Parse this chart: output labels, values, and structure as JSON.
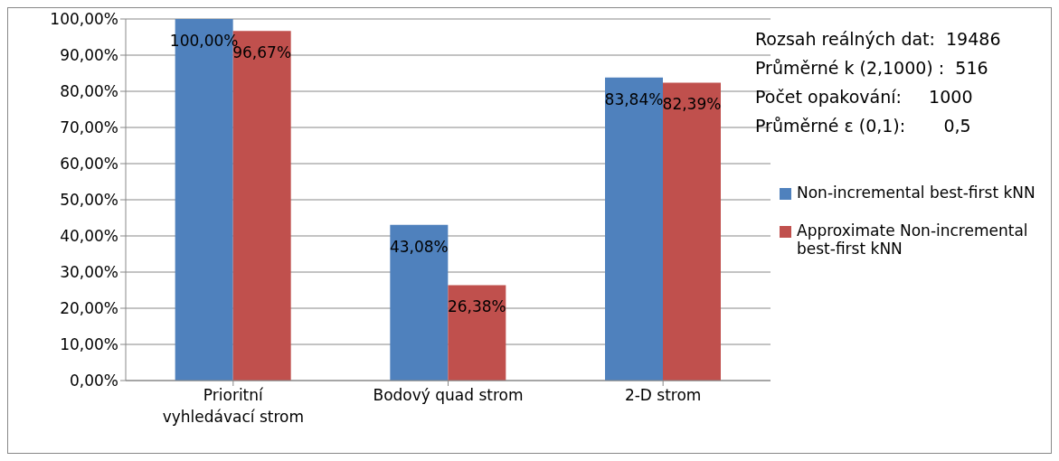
{
  "chart_data": {
    "type": "bar",
    "categories": [
      "Prioritní vyhledávací strom",
      "Bodový quad strom",
      "2-D strom"
    ],
    "series": [
      {
        "name": "Non-incremental best-first kNN",
        "color": "#4f81bd",
        "values": [
          100,
          43.08,
          83.84
        ],
        "value_labels": [
          "100,00%",
          "43,08%",
          "83,84%"
        ]
      },
      {
        "name": "Approximate Non-incremental best-first kNN",
        "color": "#c0504d",
        "values": [
          96.67,
          26.38,
          82.39
        ],
        "value_labels": [
          "96,67%",
          "26,38%",
          "82,39%"
        ]
      }
    ],
    "ylim": [
      0,
      100
    ],
    "yticks": [
      {
        "value": 0,
        "label": "0,00%"
      },
      {
        "value": 10,
        "label": "10,00%"
      },
      {
        "value": 20,
        "label": "20,00%"
      },
      {
        "value": 30,
        "label": "30,00%"
      },
      {
        "value": 40,
        "label": "40,00%"
      },
      {
        "value": 50,
        "label": "50,00%"
      },
      {
        "value": 60,
        "label": "60,00%"
      },
      {
        "value": 70,
        "label": "70,00%"
      },
      {
        "value": 80,
        "label": "80,00%"
      },
      {
        "value": 90,
        "label": "90,00%"
      },
      {
        "value": 100,
        "label": "100,00%"
      }
    ],
    "grid": "y",
    "legend": "right",
    "annotations": [
      "Rozsah reálných dat:  19486",
      "Průměrné k (2,1000) :  516",
      "Počet opakování:     1000",
      "Průměrné ε (0,1):       0,5"
    ]
  }
}
